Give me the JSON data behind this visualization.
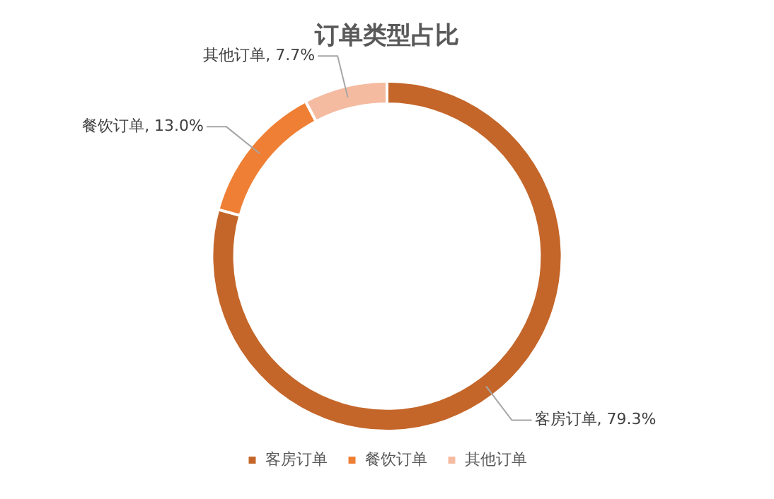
{
  "chart_data": {
    "type": "donut",
    "title": "订单类型占比",
    "categories": [
      "客房订单",
      "餐饮订单",
      "其他订单"
    ],
    "values": [
      79.3,
      13.0,
      7.7
    ],
    "colors": [
      "#c4662a",
      "#ef7f34",
      "#f5bba1"
    ],
    "data_labels": true,
    "value_labels": [
      "客房订单, 79.3%",
      "餐饮订单, 13.0%",
      "其他订单, 7.7%"
    ],
    "legend": "bottom"
  }
}
